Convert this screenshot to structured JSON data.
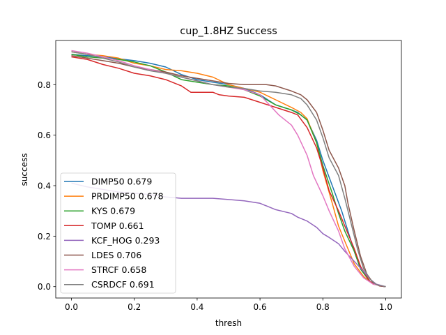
{
  "chart_data": {
    "type": "line",
    "title": "cup_1.8HZ Success",
    "xlabel": "thresh",
    "ylabel": "success",
    "xlim": [
      -0.05,
      1.05
    ],
    "ylim": [
      -0.045,
      0.975
    ],
    "xticks": [
      "0.0",
      "0.2",
      "0.4",
      "0.6",
      "0.8",
      "1.0"
    ],
    "yticks": [
      "0.0",
      "0.2",
      "0.4",
      "0.6",
      "0.8"
    ],
    "grid": false,
    "legend": "lower-left",
    "series": [
      {
        "name": "DIMP50 0.679",
        "color": "#1f77b4",
        "points": [
          [
            0,
            0.92
          ],
          [
            0.05,
            0.915
          ],
          [
            0.1,
            0.91
          ],
          [
            0.2,
            0.895
          ],
          [
            0.25,
            0.885
          ],
          [
            0.3,
            0.87
          ],
          [
            0.35,
            0.84
          ],
          [
            0.4,
            0.82
          ],
          [
            0.45,
            0.81
          ],
          [
            0.5,
            0.8
          ],
          [
            0.55,
            0.785
          ],
          [
            0.6,
            0.76
          ],
          [
            0.65,
            0.72
          ],
          [
            0.7,
            0.7
          ],
          [
            0.72,
            0.69
          ],
          [
            0.75,
            0.66
          ],
          [
            0.78,
            0.58
          ],
          [
            0.8,
            0.5
          ],
          [
            0.83,
            0.4
          ],
          [
            0.86,
            0.3
          ],
          [
            0.88,
            0.22
          ],
          [
            0.9,
            0.14
          ],
          [
            0.92,
            0.07
          ],
          [
            0.95,
            0.02
          ],
          [
            0.98,
            0.003
          ],
          [
            1.0,
            0
          ]
        ]
      },
      {
        "name": "PRDIMP50 0.678",
        "color": "#ff7f0e",
        "points": [
          [
            0,
            0.93
          ],
          [
            0.05,
            0.92
          ],
          [
            0.1,
            0.915
          ],
          [
            0.15,
            0.905
          ],
          [
            0.2,
            0.885
          ],
          [
            0.25,
            0.875
          ],
          [
            0.3,
            0.86
          ],
          [
            0.35,
            0.855
          ],
          [
            0.4,
            0.845
          ],
          [
            0.45,
            0.83
          ],
          [
            0.5,
            0.8
          ],
          [
            0.55,
            0.785
          ],
          [
            0.6,
            0.77
          ],
          [
            0.65,
            0.74
          ],
          [
            0.7,
            0.71
          ],
          [
            0.73,
            0.69
          ],
          [
            0.75,
            0.665
          ],
          [
            0.78,
            0.57
          ],
          [
            0.8,
            0.46
          ],
          [
            0.83,
            0.33
          ],
          [
            0.85,
            0.24
          ],
          [
            0.87,
            0.18
          ],
          [
            0.9,
            0.09
          ],
          [
            0.93,
            0.04
          ],
          [
            0.96,
            0.01
          ],
          [
            1.0,
            0
          ]
        ]
      },
      {
        "name": "KYS 0.679",
        "color": "#2ca02c",
        "points": [
          [
            0,
            0.92
          ],
          [
            0.05,
            0.91
          ],
          [
            0.1,
            0.905
          ],
          [
            0.15,
            0.9
          ],
          [
            0.2,
            0.89
          ],
          [
            0.25,
            0.875
          ],
          [
            0.3,
            0.85
          ],
          [
            0.35,
            0.82
          ],
          [
            0.4,
            0.81
          ],
          [
            0.45,
            0.8
          ],
          [
            0.5,
            0.795
          ],
          [
            0.55,
            0.78
          ],
          [
            0.6,
            0.755
          ],
          [
            0.65,
            0.72
          ],
          [
            0.7,
            0.7
          ],
          [
            0.73,
            0.68
          ],
          [
            0.75,
            0.66
          ],
          [
            0.78,
            0.57
          ],
          [
            0.8,
            0.48
          ],
          [
            0.83,
            0.37
          ],
          [
            0.85,
            0.29
          ],
          [
            0.87,
            0.22
          ],
          [
            0.9,
            0.14
          ],
          [
            0.92,
            0.07
          ],
          [
            0.95,
            0.02
          ],
          [
            0.98,
            0.003
          ],
          [
            1.0,
            0
          ]
        ]
      },
      {
        "name": "TOMP 0.661",
        "color": "#d62728",
        "points": [
          [
            0,
            0.91
          ],
          [
            0.05,
            0.9
          ],
          [
            0.1,
            0.88
          ],
          [
            0.15,
            0.865
          ],
          [
            0.2,
            0.845
          ],
          [
            0.25,
            0.835
          ],
          [
            0.3,
            0.82
          ],
          [
            0.35,
            0.795
          ],
          [
            0.38,
            0.77
          ],
          [
            0.45,
            0.77
          ],
          [
            0.47,
            0.76
          ],
          [
            0.5,
            0.755
          ],
          [
            0.55,
            0.75
          ],
          [
            0.6,
            0.73
          ],
          [
            0.65,
            0.71
          ],
          [
            0.7,
            0.69
          ],
          [
            0.72,
            0.68
          ],
          [
            0.75,
            0.63
          ],
          [
            0.78,
            0.55
          ],
          [
            0.8,
            0.47
          ],
          [
            0.82,
            0.38
          ],
          [
            0.85,
            0.3
          ],
          [
            0.87,
            0.24
          ],
          [
            0.9,
            0.15
          ],
          [
            0.92,
            0.08
          ],
          [
            0.95,
            0.02
          ],
          [
            0.98,
            0.003
          ],
          [
            1.0,
            0
          ]
        ]
      },
      {
        "name": "KCF_HOG 0.293",
        "color": "#9467bd",
        "points": [
          [
            0,
            0.41
          ],
          [
            0.05,
            0.395
          ],
          [
            0.1,
            0.385
          ],
          [
            0.15,
            0.375
          ],
          [
            0.2,
            0.37
          ],
          [
            0.25,
            0.365
          ],
          [
            0.3,
            0.355
          ],
          [
            0.35,
            0.35
          ],
          [
            0.4,
            0.35
          ],
          [
            0.45,
            0.35
          ],
          [
            0.5,
            0.345
          ],
          [
            0.55,
            0.34
          ],
          [
            0.6,
            0.33
          ],
          [
            0.65,
            0.305
          ],
          [
            0.7,
            0.29
          ],
          [
            0.72,
            0.275
          ],
          [
            0.75,
            0.26
          ],
          [
            0.78,
            0.235
          ],
          [
            0.8,
            0.21
          ],
          [
            0.82,
            0.195
          ],
          [
            0.85,
            0.17
          ],
          [
            0.87,
            0.14
          ],
          [
            0.9,
            0.1
          ],
          [
            0.93,
            0.06
          ],
          [
            0.95,
            0.03
          ],
          [
            0.97,
            0.01
          ],
          [
            1.0,
            0
          ]
        ]
      },
      {
        "name": "LDES 0.706",
        "color": "#8c564b",
        "points": [
          [
            0,
            0.915
          ],
          [
            0.05,
            0.905
          ],
          [
            0.1,
            0.895
          ],
          [
            0.15,
            0.885
          ],
          [
            0.2,
            0.87
          ],
          [
            0.25,
            0.86
          ],
          [
            0.3,
            0.85
          ],
          [
            0.35,
            0.835
          ],
          [
            0.4,
            0.825
          ],
          [
            0.45,
            0.815
          ],
          [
            0.5,
            0.805
          ],
          [
            0.55,
            0.8
          ],
          [
            0.6,
            0.8
          ],
          [
            0.62,
            0.8
          ],
          [
            0.65,
            0.795
          ],
          [
            0.7,
            0.775
          ],
          [
            0.73,
            0.76
          ],
          [
            0.75,
            0.74
          ],
          [
            0.78,
            0.69
          ],
          [
            0.8,
            0.62
          ],
          [
            0.82,
            0.54
          ],
          [
            0.85,
            0.47
          ],
          [
            0.87,
            0.4
          ],
          [
            0.88,
            0.33
          ],
          [
            0.9,
            0.22
          ],
          [
            0.92,
            0.12
          ],
          [
            0.94,
            0.05
          ],
          [
            0.96,
            0.015
          ],
          [
            0.98,
            0.003
          ],
          [
            1.0,
            0
          ]
        ]
      },
      {
        "name": "STRCF 0.658",
        "color": "#e377c2",
        "points": [
          [
            0,
            0.935
          ],
          [
            0.05,
            0.925
          ],
          [
            0.1,
            0.91
          ],
          [
            0.15,
            0.895
          ],
          [
            0.2,
            0.875
          ],
          [
            0.25,
            0.86
          ],
          [
            0.3,
            0.845
          ],
          [
            0.35,
            0.83
          ],
          [
            0.4,
            0.815
          ],
          [
            0.45,
            0.8
          ],
          [
            0.5,
            0.79
          ],
          [
            0.55,
            0.78
          ],
          [
            0.6,
            0.76
          ],
          [
            0.63,
            0.72
          ],
          [
            0.66,
            0.68
          ],
          [
            0.7,
            0.64
          ],
          [
            0.72,
            0.6
          ],
          [
            0.75,
            0.52
          ],
          [
            0.77,
            0.44
          ],
          [
            0.8,
            0.36
          ],
          [
            0.82,
            0.3
          ],
          [
            0.85,
            0.22
          ],
          [
            0.87,
            0.15
          ],
          [
            0.9,
            0.08
          ],
          [
            0.93,
            0.035
          ],
          [
            0.96,
            0.01
          ],
          [
            1.0,
            0
          ]
        ]
      },
      {
        "name": "CSRDCF 0.691",
        "color": "#7f7f7f",
        "points": [
          [
            0,
            0.93
          ],
          [
            0.05,
            0.92
          ],
          [
            0.1,
            0.905
          ],
          [
            0.15,
            0.89
          ],
          [
            0.2,
            0.87
          ],
          [
            0.25,
            0.855
          ],
          [
            0.3,
            0.845
          ],
          [
            0.35,
            0.83
          ],
          [
            0.4,
            0.815
          ],
          [
            0.45,
            0.8
          ],
          [
            0.5,
            0.79
          ],
          [
            0.55,
            0.785
          ],
          [
            0.6,
            0.775
          ],
          [
            0.65,
            0.77
          ],
          [
            0.7,
            0.76
          ],
          [
            0.73,
            0.745
          ],
          [
            0.75,
            0.72
          ],
          [
            0.78,
            0.66
          ],
          [
            0.8,
            0.59
          ],
          [
            0.82,
            0.51
          ],
          [
            0.85,
            0.44
          ],
          [
            0.87,
            0.35
          ],
          [
            0.89,
            0.25
          ],
          [
            0.91,
            0.15
          ],
          [
            0.93,
            0.07
          ],
          [
            0.95,
            0.03
          ],
          [
            0.97,
            0.008
          ],
          [
            1.0,
            0
          ]
        ]
      }
    ]
  }
}
